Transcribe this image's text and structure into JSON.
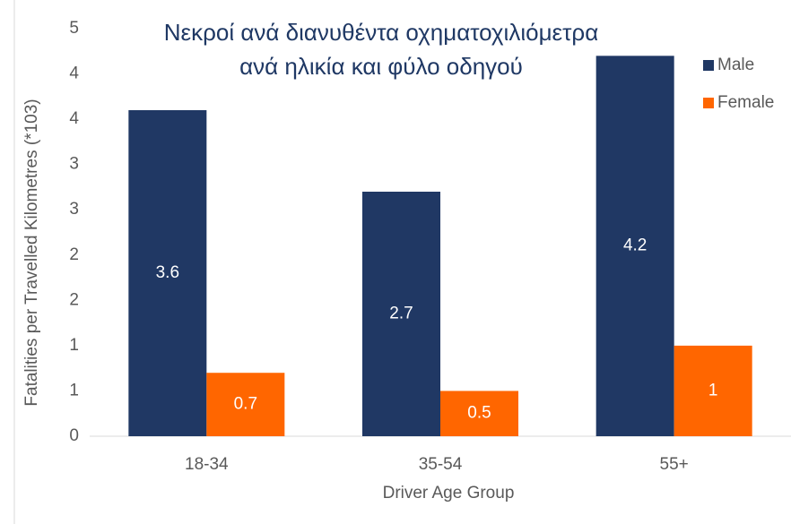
{
  "chart_data": {
    "type": "bar",
    "title": [
      "Νεκροί ανά διανυθέντα οχηματοχιλιόμετρα",
      "ανά ηλικία και φύλο οδηγού"
    ],
    "x_label": "Driver Age Group",
    "y_label": "Fatalities per Travelled Kilometres (*103)",
    "categories": [
      "18-34",
      "35-54",
      "55+"
    ],
    "series": [
      {
        "name": "Male",
        "color": "#203864",
        "values": [
          3.6,
          2.7,
          4.2
        ]
      },
      {
        "name": "Female",
        "color": "#ff6600",
        "values": [
          0.7,
          0.5,
          1.0
        ]
      }
    ],
    "ylim": [
      0,
      4.5
    ],
    "yticks": [
      0,
      {
        "value": 0.5,
        "label": "1"
      },
      {
        "value": 1,
        "label": "1"
      },
      {
        "value": 1.5,
        "label": "2"
      },
      {
        "value": 2,
        "label": "2"
      },
      {
        "value": 2.5,
        "label": "3"
      },
      {
        "value": 3,
        "label": "3"
      },
      {
        "value": 3.5,
        "label": "4"
      },
      {
        "value": 4,
        "label": "4"
      },
      {
        "value": 4.5,
        "label": "5"
      }
    ],
    "grid": false,
    "legend": "right"
  }
}
